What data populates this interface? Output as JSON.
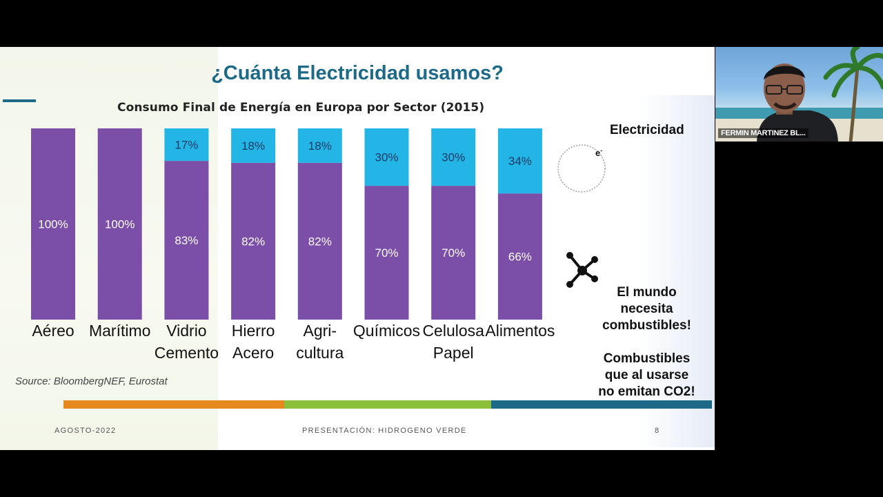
{
  "slide": {
    "title": "¿Cuánta Electricidad usamos?",
    "footer_left": "AGOSTO-2022",
    "footer_center": "PRESENTACIÓN: HIDROGENO VERDE",
    "footer_right": "8",
    "source": "Source: BloombergNEF, Eurostat",
    "electricity_label": "Electricidad",
    "electron_symbol": "e-",
    "note_1": [
      "El mundo",
      "necesita",
      "combustibles!"
    ],
    "note_2": [
      "Combustibles",
      "que al usarse",
      "no emitan CO2!"
    ],
    "stripe_colors": [
      "#e68a1f",
      "#8cbf3a",
      "#1c6a88"
    ]
  },
  "chart_data": {
    "type": "bar",
    "stacked": true,
    "title": "Consumo Final de Energía en Europa por Sector (2015)",
    "categories": [
      [
        "Aéreo"
      ],
      [
        "Marítimo"
      ],
      [
        "Vidrio",
        "Cemento"
      ],
      [
        "Hierro",
        "Acero"
      ],
      [
        "Agri-",
        "cultura"
      ],
      [
        "Químicos"
      ],
      [
        "Celulosa",
        "Papel"
      ],
      [
        "Alimentos"
      ]
    ],
    "series": [
      {
        "color": "#7b4ea8",
        "values": [
          100,
          100,
          83,
          82,
          82,
          70,
          70,
          66
        ],
        "labels": [
          "100%",
          "100%",
          "83%",
          "82%",
          "82%",
          "70%",
          "70%",
          "66%"
        ]
      },
      {
        "color": "#22b5e5",
        "values": [
          0,
          0,
          17,
          18,
          18,
          30,
          30,
          34
        ],
        "labels": [
          "",
          "",
          "17%",
          "18%",
          "18%",
          "30%",
          "30%",
          "34%"
        ]
      }
    ],
    "ylim": [
      0,
      100
    ],
    "grid": false
  },
  "webcam": {
    "participant_name": "FERMIN MARTINEZ BL..."
  }
}
